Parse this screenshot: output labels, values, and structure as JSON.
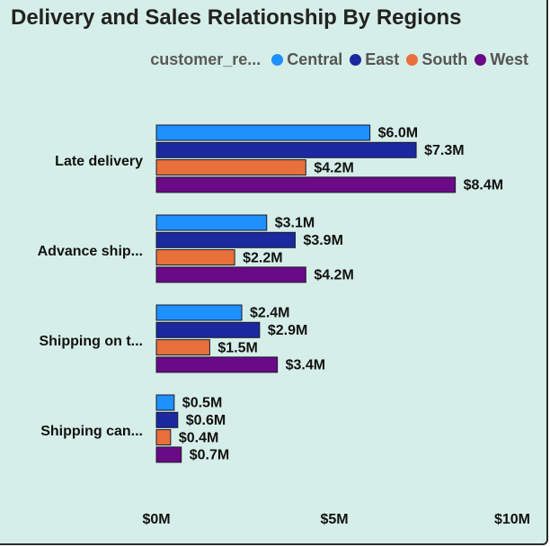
{
  "chart_data": {
    "type": "bar",
    "orientation": "horizontal",
    "title": "Delivery and Sales Relationship By Regions",
    "legend_title": "customer_re...",
    "legend_position": "top-right",
    "categories": [
      "Late delivery",
      "Advance ship...",
      "Shipping on t...",
      "Shipping can..."
    ],
    "series": [
      {
        "name": "Central",
        "color": "#1e90ff",
        "values": [
          6.0,
          3.1,
          2.4,
          0.5
        ],
        "labels": [
          "$6.0M",
          "$3.1M",
          "$2.4M",
          "$0.5M"
        ]
      },
      {
        "name": "East",
        "color": "#1a2a9e",
        "values": [
          7.3,
          3.9,
          2.9,
          0.6
        ],
        "labels": [
          "$7.3M",
          "$3.9M",
          "$2.9M",
          "$0.6M"
        ]
      },
      {
        "name": "South",
        "color": "#e8703a",
        "values": [
          4.2,
          2.2,
          1.5,
          0.4
        ],
        "labels": [
          "$4.2M",
          "$2.2M",
          "$1.5M",
          "$0.4M"
        ]
      },
      {
        "name": "West",
        "color": "#6a0a86",
        "values": [
          8.4,
          4.2,
          3.4,
          0.7
        ],
        "labels": [
          "$8.4M",
          "$4.2M",
          "$3.4M",
          "$0.7M"
        ]
      }
    ],
    "xlim": [
      0,
      10
    ],
    "x_ticks": [
      0,
      5,
      10
    ],
    "x_tick_labels": [
      "$0M",
      "$5M",
      "$10M"
    ],
    "grid": false
  }
}
